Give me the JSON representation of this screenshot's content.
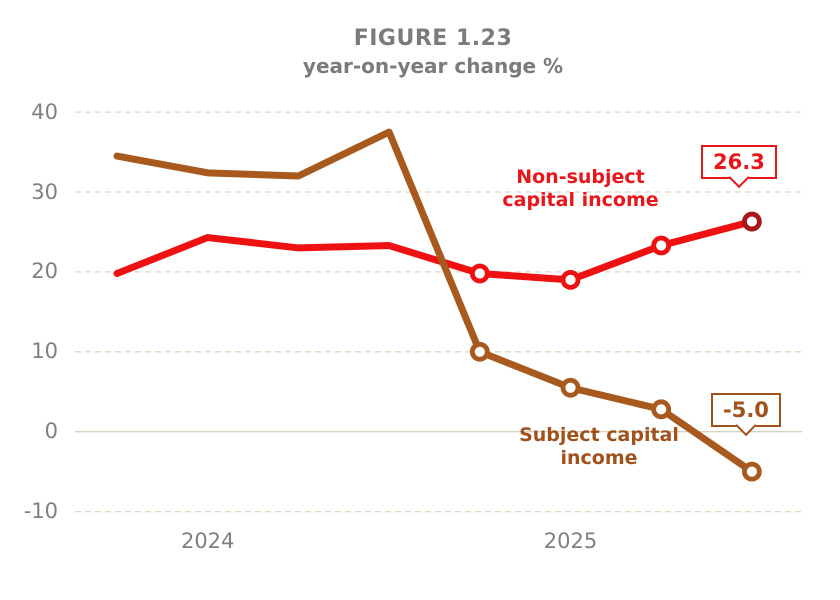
{
  "figure": {
    "title": "FIGURE 1.23",
    "subtitle": "year-on-year change %"
  },
  "chart_data": {
    "type": "line",
    "title": "FIGURE 1.23",
    "subtitle": "year-on-year change %",
    "xlabel": "",
    "ylabel": "year-on-year change %",
    "ylim": [
      -13,
      42
    ],
    "grid": "horizontal-dashed",
    "legend_position": "inline-labels",
    "y_ticks": [
      40,
      30,
      20,
      10,
      0,
      -10
    ],
    "x_tick_labels": [
      {
        "label": "2024",
        "index": 1
      },
      {
        "label": "2025",
        "index": 5
      }
    ],
    "point_count": 8,
    "series": [
      {
        "name": "Non-subject capital income",
        "color": "#ed1111",
        "last_marker_color": "#a8181a",
        "markers_from": 4,
        "values": [
          19.8,
          24.3,
          23.0,
          23.3,
          19.8,
          19.0,
          23.3,
          26.3
        ],
        "end_value_label": "26.3"
      },
      {
        "name": "Subject capital income",
        "color": "#a85a1e",
        "last_marker_color": "#a85a1e",
        "markers_from": 4,
        "values": [
          34.5,
          32.4,
          32.0,
          37.5,
          10.0,
          5.5,
          2.8,
          -5.0
        ],
        "end_value_label": "-5.0"
      }
    ],
    "colors": {
      "gridline": "#dedac3",
      "zero_line": "#d6d2c2",
      "axis_text": "#808080",
      "title_text": "#7b7b7b"
    }
  },
  "annotations": {
    "nonsubject_series_label": "Non-subject capital income",
    "subject_series_label": "Subject capital income",
    "nonsubject_callout": "26.3",
    "subject_callout": "-5.0"
  }
}
